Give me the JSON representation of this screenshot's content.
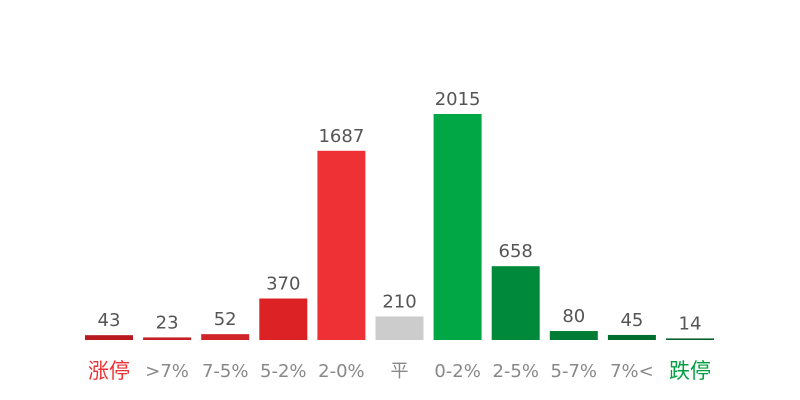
{
  "chart_data": {
    "type": "bar",
    "categories": [
      "涨停",
      ">7%",
      "7-5%",
      "5-2%",
      "2-0%",
      "平",
      "0-2%",
      "2-5%",
      "5-7%",
      "7%<",
      "跌停"
    ],
    "values": [
      43,
      23,
      52,
      370,
      1687,
      210,
      2015,
      658,
      80,
      45,
      14
    ],
    "colors": [
      "#b8191e",
      "#c42024",
      "#d12428",
      "#dd2226",
      "#ee3134",
      "#cccccc",
      "#00a744",
      "#00893a",
      "#007c34",
      "#006e2e",
      "#006027"
    ],
    "label_colors": [
      "#ee3134",
      "#888888",
      "#888888",
      "#888888",
      "#888888",
      "#888888",
      "#888888",
      "#888888",
      "#888888",
      "#888888",
      "#00a040"
    ]
  }
}
